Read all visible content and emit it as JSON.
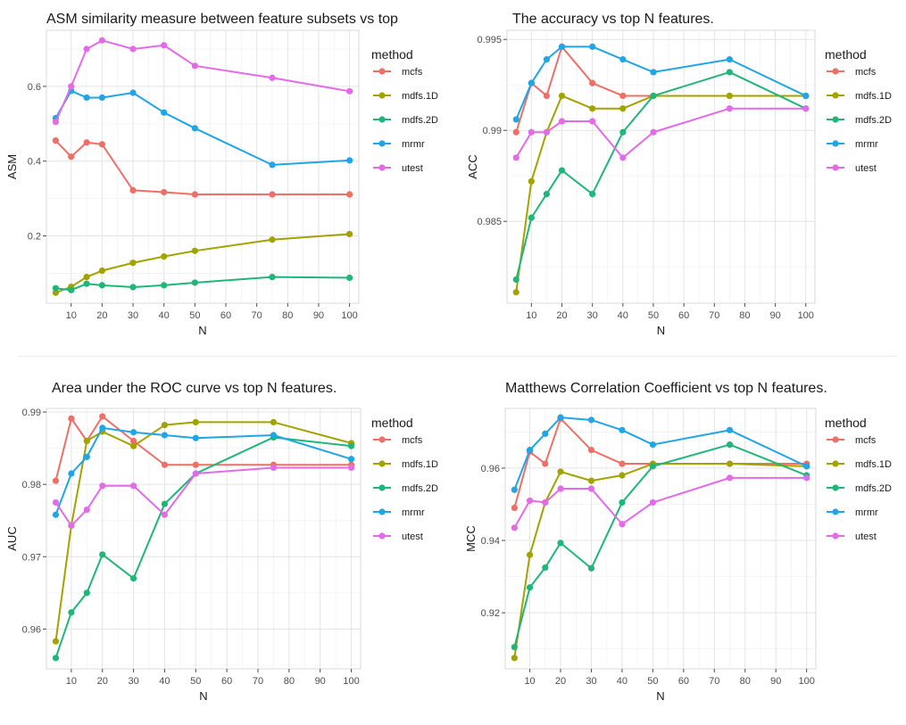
{
  "colors": {
    "mcfs": "#ef6f67",
    "mdfs.1D": "#a3a300",
    "mdfs.2D": "#1fb679",
    "mrmr": "#1ea6e6",
    "utest": "#e46be8",
    "grid": "#e4e4e4",
    "axis": "#4d4d4d",
    "text": "#1a1a1a"
  },
  "chart_data": [
    {
      "type": "line",
      "title": "ASM similarity measure between feature subsets vs top",
      "xlabel": "N",
      "ylabel": "ASM",
      "x": [
        5,
        10,
        15,
        20,
        30,
        40,
        50,
        75,
        100
      ],
      "xticks": [
        10,
        20,
        30,
        40,
        50,
        60,
        70,
        80,
        90,
        100
      ],
      "xlim": [
        2,
        103
      ],
      "yticks": [
        0.2,
        0.4,
        0.6
      ],
      "ylim": [
        0.02,
        0.75
      ],
      "legend_title": "method",
      "legend_position": "right",
      "grid": true,
      "series": [
        {
          "name": "mcfs",
          "values": [
            0.455,
            0.412,
            0.45,
            0.445,
            0.322,
            0.317,
            0.311,
            0.311,
            0.311
          ]
        },
        {
          "name": "mdfs.1D",
          "values": [
            0.048,
            0.064,
            0.09,
            0.107,
            0.128,
            0.145,
            0.16,
            0.19,
            0.205
          ]
        },
        {
          "name": "mdfs.2D",
          "values": [
            0.06,
            0.055,
            0.072,
            0.068,
            0.063,
            0.068,
            0.075,
            0.09,
            0.088
          ]
        },
        {
          "name": "mrmr",
          "values": [
            0.515,
            0.588,
            0.57,
            0.57,
            0.583,
            0.53,
            0.488,
            0.39,
            0.402
          ]
        },
        {
          "name": "utest",
          "values": [
            0.505,
            0.6,
            0.7,
            0.723,
            0.7,
            0.71,
            0.655,
            0.623,
            0.587
          ]
        }
      ]
    },
    {
      "type": "line",
      "title": "The accuracy vs top N features.",
      "xlabel": "N",
      "ylabel": "ACC",
      "x": [
        5,
        10,
        15,
        20,
        30,
        40,
        50,
        75,
        100
      ],
      "xticks": [
        10,
        20,
        30,
        40,
        50,
        60,
        70,
        80,
        90,
        100
      ],
      "xlim": [
        2,
        103
      ],
      "yticks": [
        0.985,
        0.99,
        0.995
      ],
      "ylim": [
        0.9805,
        0.9955
      ],
      "legend_title": "method",
      "legend_position": "right",
      "grid": true,
      "series": [
        {
          "name": "mcfs",
          "values": [
            0.9899,
            0.9926,
            0.9919,
            0.9946,
            0.9926,
            0.9919,
            0.9919,
            0.9919,
            0.9919
          ]
        },
        {
          "name": "mdfs.1D",
          "values": [
            0.9811,
            0.9872,
            0.9899,
            0.9919,
            0.9912,
            0.9912,
            0.9919,
            0.9919,
            0.9919
          ]
        },
        {
          "name": "mdfs.2D",
          "values": [
            0.9818,
            0.9852,
            0.9865,
            0.9878,
            0.9865,
            0.9899,
            0.9919,
            0.9932,
            0.9912
          ]
        },
        {
          "name": "mrmr",
          "values": [
            0.9906,
            0.9926,
            0.9939,
            0.9946,
            0.9946,
            0.9939,
            0.9932,
            0.9939,
            0.9919
          ]
        },
        {
          "name": "utest",
          "values": [
            0.9885,
            0.9899,
            0.9899,
            0.9905,
            0.9905,
            0.9885,
            0.9899,
            0.9912,
            0.9912
          ]
        }
      ]
    },
    {
      "type": "line",
      "title": "Area under the ROC curve vs top N features.",
      "xlabel": "N",
      "ylabel": "AUC",
      "x": [
        5,
        10,
        15,
        20,
        30,
        40,
        50,
        75,
        100
      ],
      "xticks": [
        10,
        20,
        30,
        40,
        50,
        60,
        70,
        80,
        90,
        100
      ],
      "xlim": [
        2,
        103
      ],
      "yticks": [
        0.96,
        0.97,
        0.98,
        0.99
      ],
      "ylim": [
        0.9545,
        0.9905
      ],
      "legend_title": "method",
      "legend_position": "right",
      "grid": true,
      "series": [
        {
          "name": "mcfs",
          "values": [
            0.9805,
            0.9891,
            0.986,
            0.9894,
            0.986,
            0.9827,
            0.9827,
            0.9827,
            0.9827
          ]
        },
        {
          "name": "mdfs.1D",
          "values": [
            0.9583,
            0.9743,
            0.986,
            0.9873,
            0.9853,
            0.9882,
            0.9886,
            0.9886,
            0.9857
          ]
        },
        {
          "name": "mdfs.2D",
          "values": [
            0.956,
            0.9623,
            0.965,
            0.9703,
            0.967,
            0.9773,
            0.9815,
            0.9865,
            0.9853
          ]
        },
        {
          "name": "mrmr",
          "values": [
            0.9758,
            0.9815,
            0.9838,
            0.9878,
            0.9872,
            0.9868,
            0.9864,
            0.9868,
            0.9835
          ]
        },
        {
          "name": "utest",
          "values": [
            0.9775,
            0.9743,
            0.9765,
            0.9798,
            0.9798,
            0.9758,
            0.9815,
            0.9823,
            0.9823
          ]
        }
      ]
    },
    {
      "type": "line",
      "title": "Matthews Correlation Coefficient vs top N features.",
      "xlabel": "N",
      "ylabel": "MCC",
      "x": [
        5,
        10,
        15,
        20,
        30,
        40,
        50,
        75,
        100
      ],
      "xticks": [
        10,
        20,
        30,
        40,
        50,
        60,
        70,
        80,
        90,
        100
      ],
      "xlim": [
        2,
        103
      ],
      "yticks": [
        0.92,
        0.94,
        0.96
      ],
      "ylim": [
        0.9045,
        0.9765
      ],
      "legend_title": "method",
      "legend_position": "right",
      "grid": true,
      "series": [
        {
          "name": "mcfs",
          "values": [
            0.949,
            0.9645,
            0.9612,
            0.9737,
            0.965,
            0.9612,
            0.9612,
            0.9612,
            0.9612
          ]
        },
        {
          "name": "mdfs.1D",
          "values": [
            0.9075,
            0.936,
            0.9505,
            0.959,
            0.9565,
            0.958,
            0.9612,
            0.9612,
            0.9605
          ]
        },
        {
          "name": "mdfs.2D",
          "values": [
            0.9105,
            0.927,
            0.9325,
            0.9393,
            0.9323,
            0.9505,
            0.9605,
            0.9665,
            0.958
          ]
        },
        {
          "name": "mrmr",
          "values": [
            0.954,
            0.965,
            0.9695,
            0.974,
            0.9733,
            0.9705,
            0.9665,
            0.9705,
            0.9605
          ]
        },
        {
          "name": "utest",
          "values": [
            0.9435,
            0.951,
            0.9505,
            0.9543,
            0.9543,
            0.9445,
            0.9505,
            0.9573,
            0.9573
          ]
        }
      ]
    }
  ]
}
